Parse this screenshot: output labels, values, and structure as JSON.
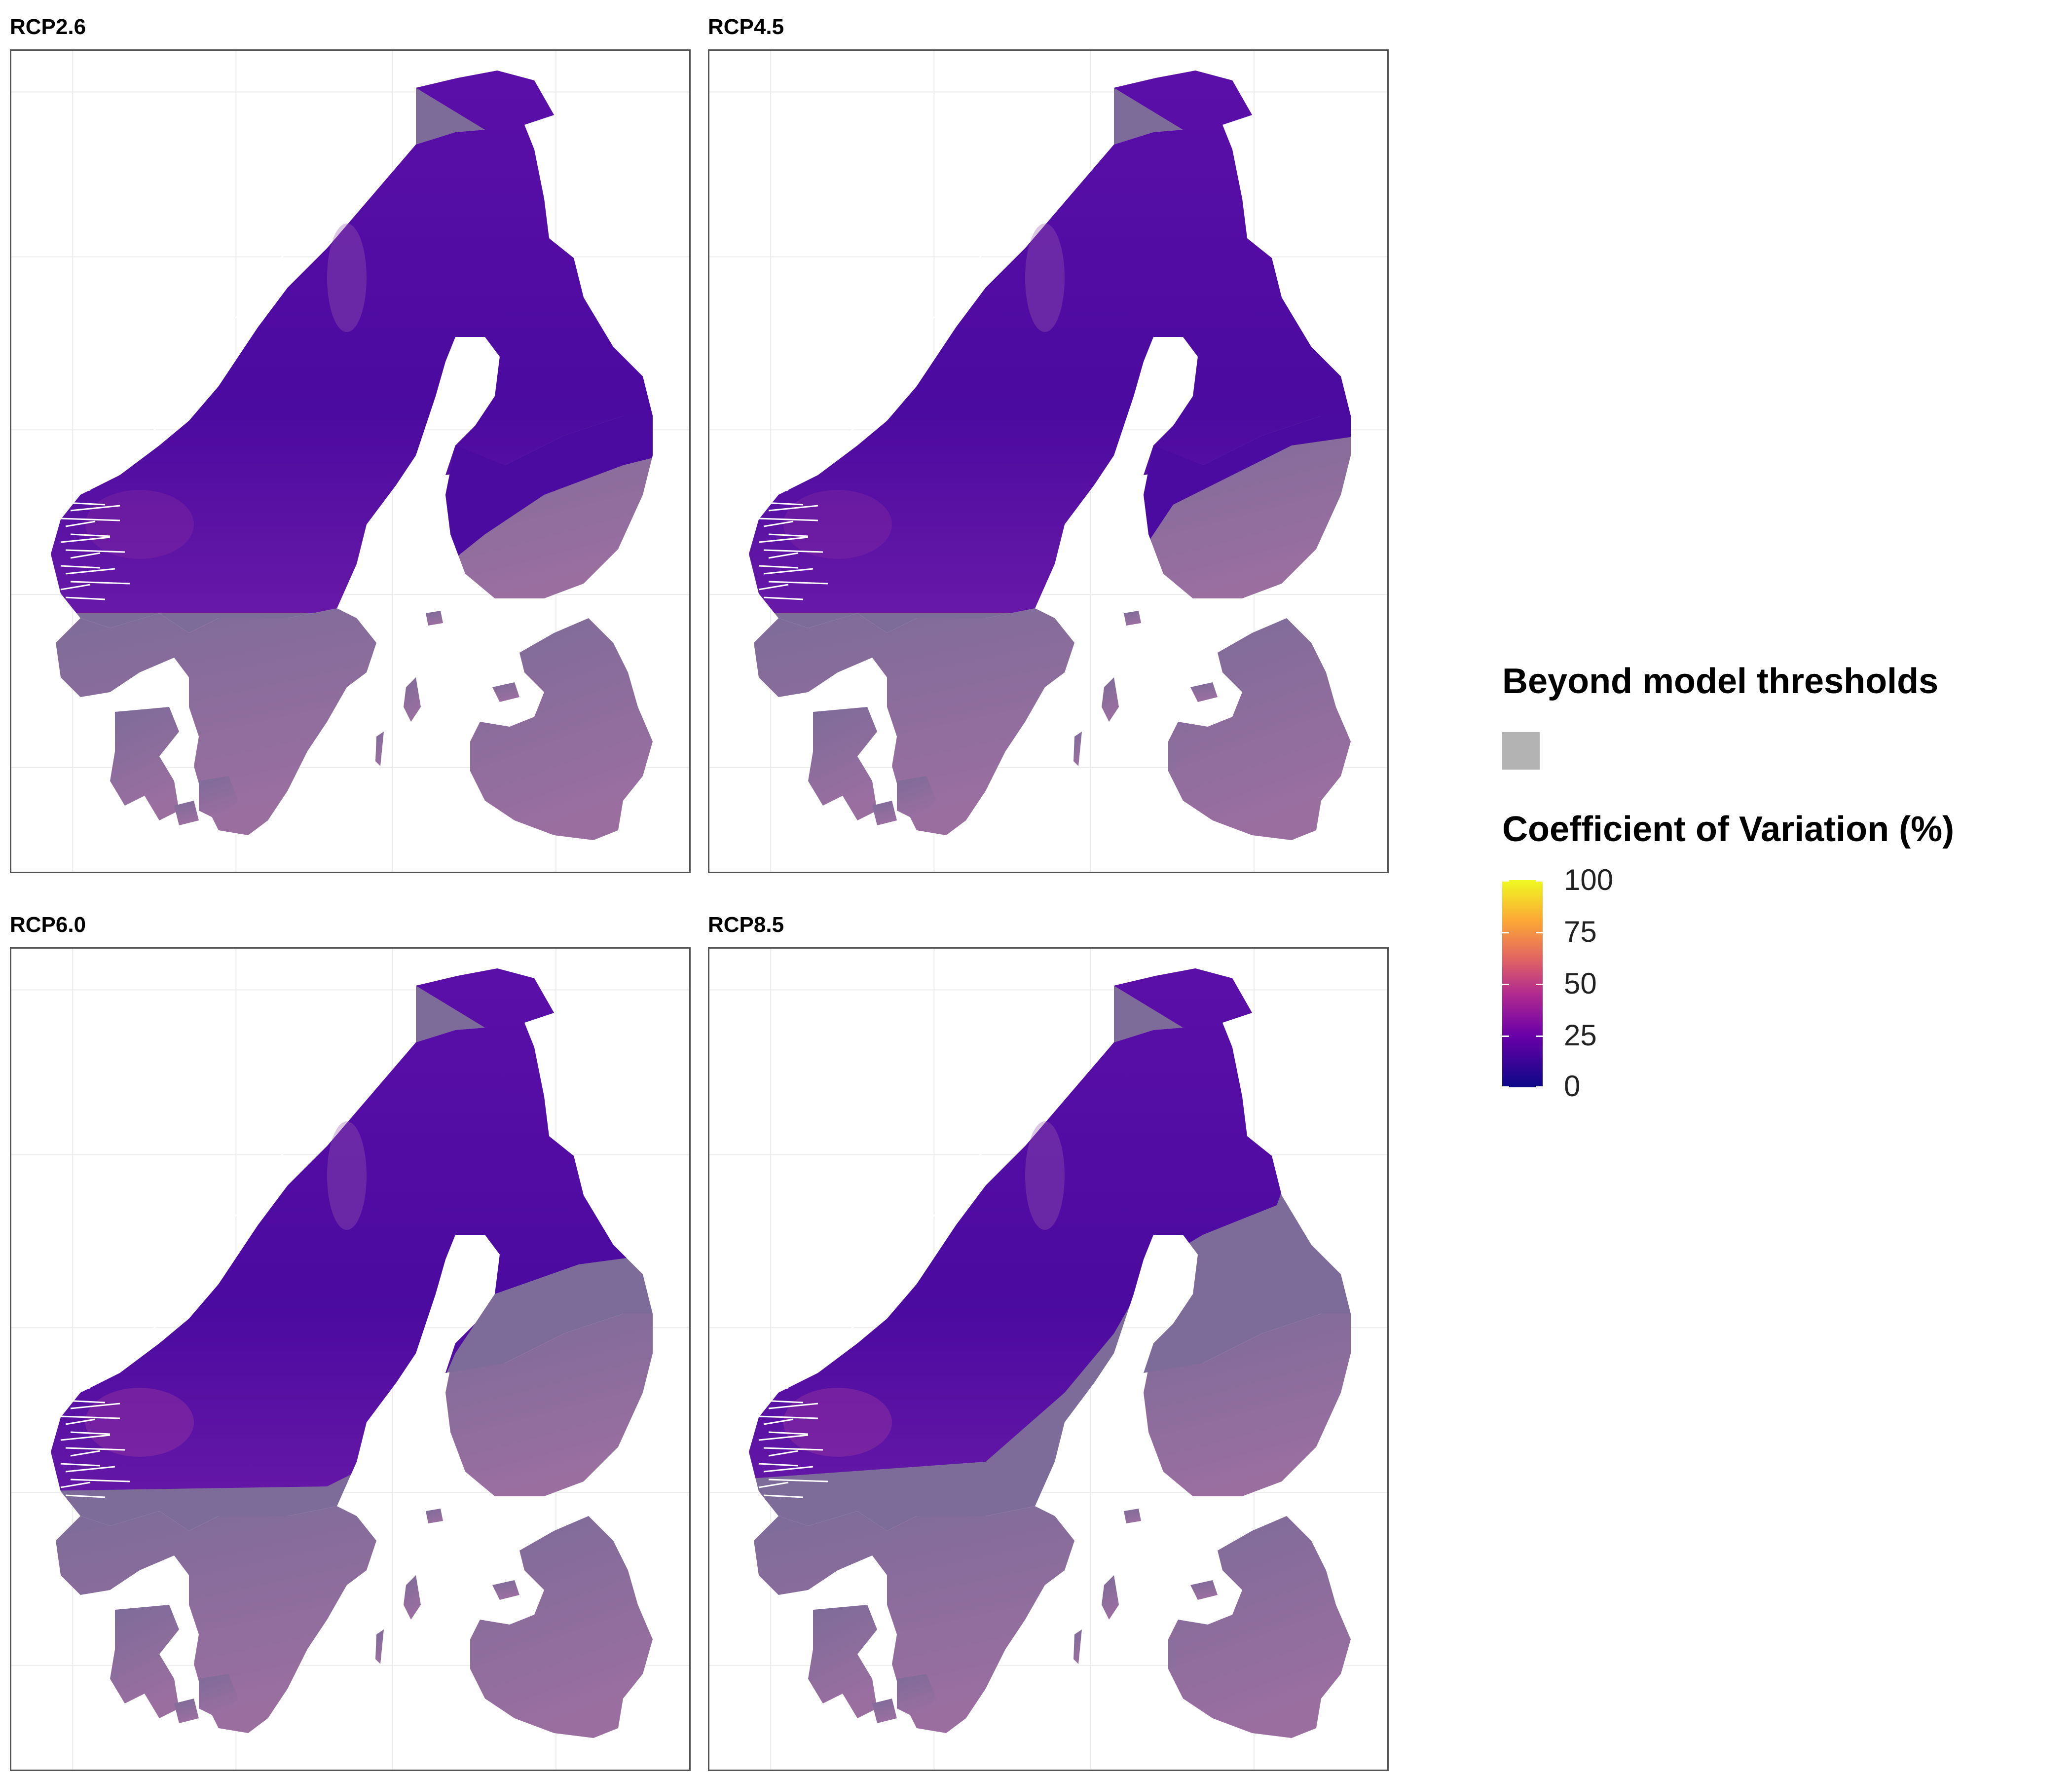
{
  "panels": [
    {
      "title": "RCP2.6"
    },
    {
      "title": "RCP4.5"
    },
    {
      "title": "RCP6.0"
    },
    {
      "title": "RCP8.5"
    }
  ],
  "legend": {
    "beyond_title": "Beyond model thresholds",
    "beyond_color": "#b3b3b3",
    "cv_title": "Coefficient of Variation (%)",
    "scale": "plasma",
    "range": [
      0,
      100
    ],
    "ticks": [
      "100",
      "75",
      "50",
      "25",
      "0"
    ]
  },
  "colors": {
    "grey_area": "#7d6b99",
    "low_cv": "#4b0aa0",
    "high_cv": "#9a5aa5"
  }
}
